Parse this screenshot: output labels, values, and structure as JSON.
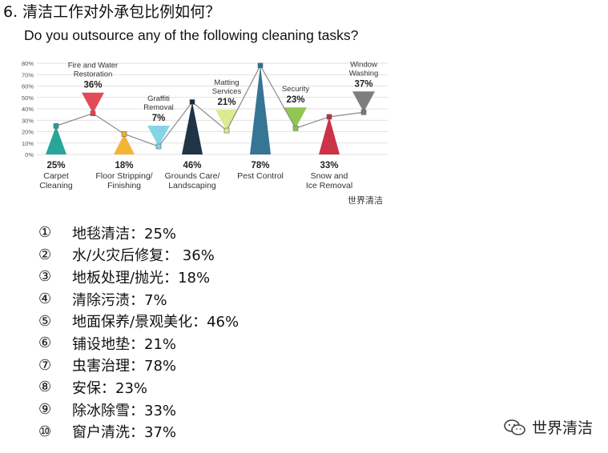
{
  "heading": "6. 清洁工作对外承包比例如何？",
  "chart_data": {
    "type": "line",
    "title": "Do you outsource any of the following cleaning tasks?",
    "ylim": [
      0,
      80
    ],
    "yticks": [
      "0%",
      "10%",
      "20%",
      "30%",
      "40%",
      "50%",
      "60%",
      "70%",
      "80%"
    ],
    "grid": true,
    "categories": [
      {
        "label": "Carpet Cleaning",
        "lines": [
          "Carpet",
          "Cleaning"
        ],
        "value": 25,
        "value_label": "25%",
        "color": "#1fa095",
        "marker_up": true
      },
      {
        "label": "Fire and Water Restoration",
        "lines": [
          "Fire and Water",
          "Restoration"
        ],
        "value": 36,
        "value_label": "36%",
        "color": "#e2404f",
        "marker_up": false
      },
      {
        "label": "Floor Stripping/ Finishing",
        "lines": [
          "Floor Stripping/",
          "Finishing"
        ],
        "value": 18,
        "value_label": "18%",
        "color": "#f3b12a",
        "marker_up": true
      },
      {
        "label": "Graffiti Removal",
        "lines": [
          "Graffiti",
          "Removal"
        ],
        "value": 7,
        "value_label": "7%",
        "color": "#7fd3e6",
        "marker_up": false
      },
      {
        "label": "Grounds Care/ Landscaping",
        "lines": [
          "Grounds Care/",
          "Landscaping"
        ],
        "value": 46,
        "value_label": "46%",
        "color": "#13293d",
        "marker_up": true
      },
      {
        "label": "Matting Services",
        "lines": [
          "Matting",
          "Services"
        ],
        "value": 21,
        "value_label": "21%",
        "color": "#d8ea8a",
        "marker_up": false
      },
      {
        "label": "Pest Control",
        "lines": [
          "Pest Control"
        ],
        "value": 78,
        "value_label": "78%",
        "color": "#2b6f8e",
        "marker_up": true
      },
      {
        "label": "Security",
        "lines": [
          "Security"
        ],
        "value": 23,
        "value_label": "23%",
        "color": "#8bc34a",
        "marker_up": false
      },
      {
        "label": "Snow and Ice Removal",
        "lines": [
          "Snow and",
          "Ice Removal"
        ],
        "value": 33,
        "value_label": "33%",
        "color": "#c8283c",
        "marker_up": true
      },
      {
        "label": "Window Washing",
        "lines": [
          "Window",
          "Washing"
        ],
        "value": 37,
        "value_label": "37%",
        "color": "#777777",
        "marker_up": false
      }
    ],
    "watermark": "世界清洁"
  },
  "list": [
    {
      "num": "①",
      "text": "地毯清洁：25%"
    },
    {
      "num": "②",
      "text": "水/火灾后修复： 36%"
    },
    {
      "num": "③",
      "text": "地板处理/抛光：18%"
    },
    {
      "num": "④",
      "text": "清除污渍：7%"
    },
    {
      "num": "⑤",
      "text": "地面保养/景观美化：46%"
    },
    {
      "num": "⑥",
      "text": "铺设地垫：21%"
    },
    {
      "num": "⑦",
      "text": "虫害治理：78%"
    },
    {
      "num": "⑧",
      "text": "安保：23%"
    },
    {
      "num": "⑨",
      "text": "除冰除雪：33%"
    },
    {
      "num": "⑩",
      "text": "窗户清洗：37%"
    }
  ],
  "watermark": {
    "text": "世界清洁",
    "icon": "wechat-icon"
  }
}
